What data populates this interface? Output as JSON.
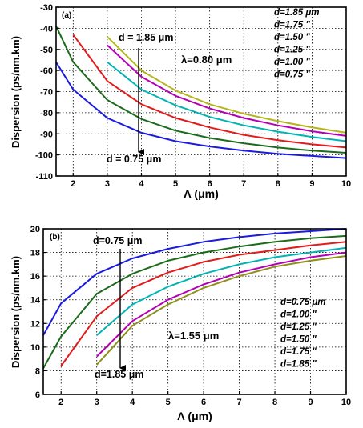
{
  "chart_data": [
    {
      "type": "line",
      "panel_label": "(a)",
      "ylabel": "Dispersion (ps/nm.km)",
      "xlabel": "Λ (μm)",
      "xlim": [
        1.5,
        10
      ],
      "ylim": [
        -110,
        -30
      ],
      "xticks": [
        2,
        3,
        4,
        5,
        6,
        7,
        8,
        9,
        10
      ],
      "yticks": [
        -110,
        -100,
        -90,
        -80,
        -70,
        -60,
        -50,
        -40,
        -30
      ],
      "grid": true,
      "wavelength_label": "λ=0.80 μm",
      "arrow_top_label": "d = 1.85 μm",
      "arrow_bottom_label": "d = 0.75 μm",
      "legend_position": "top-right",
      "legend": [
        "d=1.85 μm",
        "d=1.75 \"",
        "d=1.50 \"",
        "d=1.25 \"",
        "d=1.00 \"",
        "d=0.75 \""
      ],
      "series": [
        {
          "color": "#b5b51a",
          "x": [
            3,
            4,
            5,
            6,
            7,
            8,
            9,
            10
          ],
          "values": [
            -44,
            -60,
            -69.5,
            -76,
            -80.5,
            -84,
            -87,
            -89.5
          ]
        },
        {
          "color": "#b400b4",
          "x": [
            3,
            4,
            5,
            6,
            7,
            8,
            9,
            10
          ],
          "values": [
            -48,
            -63,
            -72,
            -78,
            -82.5,
            -86,
            -88.8,
            -91
          ]
        },
        {
          "color": "#00b4b4",
          "x": [
            3,
            4,
            5,
            6,
            7,
            8,
            9,
            10
          ],
          "values": [
            -56,
            -69,
            -76.5,
            -82,
            -86,
            -89,
            -91.5,
            -93.5
          ]
        },
        {
          "color": "#e31b1b",
          "x": [
            2,
            3,
            4,
            5,
            6,
            7,
            8,
            9,
            10
          ],
          "values": [
            -43,
            -65,
            -76,
            -82.5,
            -87,
            -90.5,
            -93,
            -95,
            -96.5
          ]
        },
        {
          "color": "#1a6b1a",
          "x": [
            1.5,
            2,
            3,
            4,
            5,
            6,
            7,
            8,
            9,
            10
          ],
          "values": [
            -39,
            -56,
            -74,
            -83,
            -88.5,
            -92,
            -94.5,
            -96.5,
            -98,
            -99
          ]
        },
        {
          "color": "#1a1ae0",
          "x": [
            1.5,
            2,
            3,
            4,
            5,
            6,
            7,
            8,
            9,
            10
          ],
          "values": [
            -56,
            -69,
            -82.5,
            -89.5,
            -93.5,
            -96,
            -98,
            -99.5,
            -100.5,
            -101.5
          ]
        }
      ]
    },
    {
      "type": "line",
      "panel_label": "(b)",
      "ylabel": "Dispersion (ps/nm.km)",
      "xlabel": "Λ (μm)",
      "xlim": [
        1.5,
        10
      ],
      "ylim": [
        6,
        20
      ],
      "xticks": [
        2,
        3,
        4,
        5,
        6,
        7,
        8,
        9,
        10
      ],
      "yticks": [
        6,
        8,
        10,
        12,
        14,
        16,
        18,
        20
      ],
      "grid": true,
      "wavelength_label": "λ=1.55 μm",
      "arrow_top_label": "d=0.75 μm",
      "arrow_bottom_label": "d=1.85 μm",
      "legend_position": "bottom-right",
      "legend": [
        "d=0.75 μm",
        "d=1.00 \"",
        "d=1.25 \"",
        "d=1.50 \"",
        "d=1.75 \"",
        "d=1.85 \""
      ],
      "series": [
        {
          "color": "#1a1ae0",
          "x": [
            1.5,
            2,
            3,
            4,
            5,
            6,
            7,
            8,
            9,
            10
          ],
          "values": [
            11,
            13.7,
            16.2,
            17.5,
            18.3,
            18.9,
            19.3,
            19.6,
            19.8,
            20
          ]
        },
        {
          "color": "#1a6b1a",
          "x": [
            1.5,
            2,
            3,
            4,
            5,
            6,
            7,
            8,
            9,
            10
          ],
          "values": [
            8.2,
            10.9,
            14.5,
            16.2,
            17.3,
            18,
            18.5,
            18.9,
            19.2,
            19.4
          ]
        },
        {
          "color": "#e31b1b",
          "x": [
            2,
            3,
            4,
            5,
            6,
            7,
            8,
            9,
            10
          ],
          "values": [
            8.4,
            12.6,
            15,
            16.3,
            17.2,
            17.8,
            18.2,
            18.6,
            18.9
          ]
        },
        {
          "color": "#00b4b4",
          "x": [
            3,
            4,
            5,
            6,
            7,
            8,
            9,
            10
          ],
          "values": [
            11,
            13.6,
            15.1,
            16.2,
            17,
            17.6,
            18,
            18.4
          ]
        },
        {
          "color": "#b400b4",
          "x": [
            3,
            4,
            5,
            6,
            7,
            8,
            9,
            10
          ],
          "values": [
            9.2,
            12.2,
            14,
            15.3,
            16.3,
            17,
            17.6,
            18
          ]
        },
        {
          "color": "#8f8f1a",
          "x": [
            3,
            4,
            5,
            6,
            7,
            8,
            9,
            10
          ],
          "values": [
            8.5,
            11.8,
            13.6,
            15,
            16,
            16.8,
            17.3,
            17.7
          ]
        }
      ]
    }
  ]
}
